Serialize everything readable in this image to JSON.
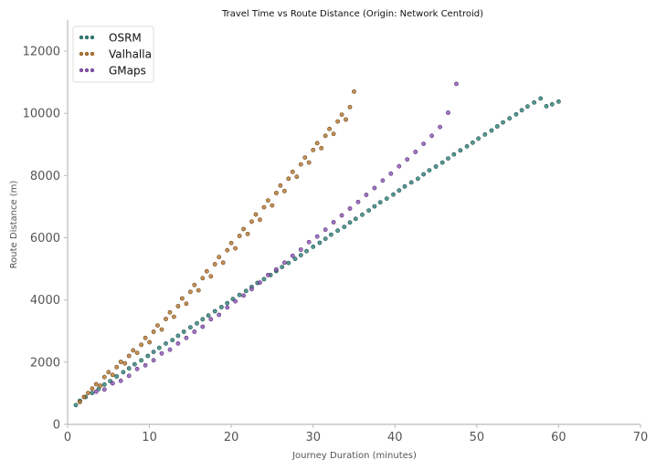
{
  "chart_data": {
    "type": "scatter",
    "title": "Travel Time vs Route Distance (Origin: Network Centroid)",
    "xlabel": "Journey Duration (minutes)",
    "ylabel": "Route Distance (m)",
    "xlim": [
      0,
      70
    ],
    "ylim": [
      0,
      13000
    ],
    "xticks": [
      "0",
      "10",
      "20",
      "30",
      "40",
      "50",
      "60",
      "70"
    ],
    "yticks": [
      "0",
      "2000",
      "4000",
      "6000",
      "8000",
      "10000",
      "12000"
    ],
    "grid": false,
    "legend_position": "top-left",
    "series": [
      {
        "name": "OSRM",
        "color": "#2f7f79",
        "edge": "#1a4f4c",
        "x": [
          1.0,
          1.5,
          2.2,
          3.0,
          3.8,
          4.5,
          5.2,
          6.0,
          6.8,
          7.5,
          8.2,
          9.0,
          9.8,
          10.5,
          11.2,
          12.0,
          12.8,
          13.5,
          14.2,
          15.0,
          15.8,
          16.5,
          17.2,
          18.0,
          18.8,
          19.5,
          20.2,
          21.0,
          21.8,
          22.5,
          23.2,
          24.0,
          24.8,
          25.5,
          26.2,
          27.0,
          27.8,
          28.5,
          29.2,
          30.0,
          30.8,
          31.5,
          32.2,
          33.0,
          33.8,
          34.5,
          35.2,
          36.0,
          36.8,
          37.5,
          38.2,
          39.0,
          39.8,
          40.5,
          41.2,
          42.0,
          42.8,
          43.5,
          44.2,
          45.0,
          45.8,
          46.5,
          47.2,
          48.0,
          48.8,
          49.5,
          50.2,
          51.0,
          51.8,
          52.5,
          53.2,
          54.0,
          54.8,
          55.5,
          56.2,
          57.0,
          57.8,
          58.5,
          59.2,
          60.0
        ],
        "y": [
          620,
          760,
          880,
          1010,
          1140,
          1280,
          1390,
          1540,
          1680,
          1800,
          1930,
          2060,
          2200,
          2330,
          2460,
          2600,
          2710,
          2850,
          2980,
          3120,
          3250,
          3380,
          3500,
          3640,
          3770,
          3900,
          4030,
          4160,
          4290,
          4420,
          4550,
          4670,
          4800,
          4930,
          5060,
          5190,
          5320,
          5440,
          5570,
          5710,
          5840,
          5970,
          6100,
          6230,
          6350,
          6490,
          6610,
          6740,
          6880,
          7010,
          7140,
          7260,
          7390,
          7520,
          7650,
          7780,
          7900,
          8040,
          8170,
          8290,
          8420,
          8550,
          8680,
          8810,
          8940,
          9060,
          9190,
          9320,
          9450,
          9580,
          9710,
          9840,
          9970,
          10100,
          10220,
          10350,
          10480,
          10230,
          10290,
          10380
        ]
      },
      {
        "name": "Valhalla",
        "color": "#b7772f",
        "edge": "#6b4212",
        "x": [
          1.5,
          2.0,
          2.5,
          3.0,
          3.5,
          4.0,
          4.5,
          5.0,
          5.5,
          6.0,
          6.5,
          7.0,
          7.5,
          8.0,
          8.5,
          9.0,
          9.5,
          10.0,
          10.5,
          11.0,
          11.5,
          12.0,
          12.5,
          13.0,
          13.5,
          14.0,
          14.5,
          15.0,
          15.5,
          16.0,
          16.5,
          17.0,
          17.5,
          18.0,
          18.5,
          19.0,
          19.5,
          20.0,
          20.5,
          21.0,
          21.5,
          22.0,
          22.5,
          23.0,
          23.5,
          24.0,
          24.5,
          25.0,
          25.5,
          26.0,
          26.5,
          27.0,
          27.5,
          28.0,
          28.5,
          29.0,
          29.5,
          30.0,
          30.5,
          31.0,
          31.5,
          32.0,
          32.5,
          33.0,
          33.5,
          34.0,
          34.5,
          35.0
        ],
        "y": [
          720,
          880,
          1010,
          1150,
          1290,
          1240,
          1520,
          1680,
          1590,
          1840,
          2010,
          1960,
          2200,
          2380,
          2300,
          2560,
          2780,
          2640,
          2980,
          3180,
          3050,
          3390,
          3600,
          3460,
          3800,
          4050,
          3880,
          4260,
          4480,
          4310,
          4700,
          4920,
          4760,
          5150,
          5380,
          5200,
          5600,
          5830,
          5660,
          6060,
          6280,
          6120,
          6520,
          6750,
          6580,
          6980,
          7200,
          7040,
          7440,
          7680,
          7500,
          7900,
          8120,
          7960,
          8360,
          8580,
          8420,
          8820,
          9040,
          8880,
          9280,
          9500,
          9340,
          9740,
          9960,
          9800,
          10200,
          10700
        ]
      },
      {
        "name": "GMaps",
        "color": "#8c52b8",
        "edge": "#55306f",
        "x": [
          3.5,
          4.5,
          5.5,
          6.5,
          7.5,
          8.5,
          9.5,
          10.5,
          11.5,
          12.5,
          13.5,
          14.5,
          15.5,
          16.5,
          17.5,
          18.5,
          19.5,
          20.5,
          21.5,
          22.5,
          23.5,
          24.5,
          25.5,
          26.5,
          27.5,
          28.5,
          29.5,
          30.5,
          31.5,
          32.5,
          33.5,
          34.5,
          35.5,
          36.5,
          37.5,
          38.5,
          39.5,
          40.5,
          41.5,
          42.5,
          43.5,
          44.5,
          45.5,
          46.5,
          47.5
        ],
        "y": [
          1050,
          1120,
          1320,
          1400,
          1560,
          1780,
          1900,
          2060,
          2280,
          2400,
          2600,
          2780,
          2980,
          3140,
          3380,
          3520,
          3760,
          3960,
          4140,
          4350,
          4560,
          4800,
          4980,
          5200,
          5420,
          5620,
          5860,
          6040,
          6260,
          6500,
          6720,
          6940,
          7150,
          7380,
          7600,
          7840,
          8060,
          8300,
          8520,
          8760,
          9020,
          9280,
          9560,
          10020,
          10950
        ]
      }
    ]
  }
}
